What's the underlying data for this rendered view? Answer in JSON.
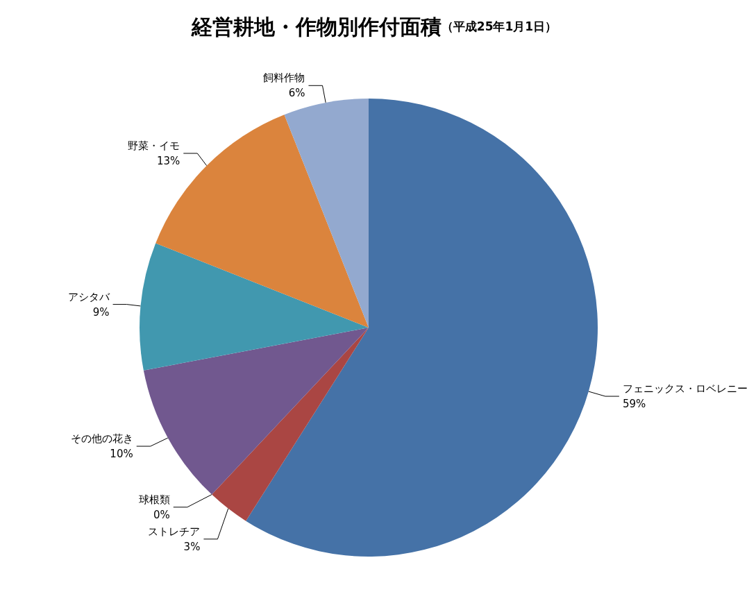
{
  "chart_data": {
    "type": "pie",
    "title": "経営耕地・作物別作付面積",
    "subtitle": "（平成25年1月1日）",
    "categories": [
      "フェニックス・ロベレニー",
      "ストレチア",
      "球根類",
      "その他の花き",
      "アシタバ",
      "野菜・イモ",
      "飼料作物"
    ],
    "values": [
      59,
      3,
      0,
      10,
      9,
      13,
      6
    ],
    "value_labels": [
      "59%",
      "3%",
      "0%",
      "10%",
      "9%",
      "13%",
      "6%"
    ],
    "colors": [
      "#4572a7",
      "#aa4643",
      "#89a54e",
      "#71588f",
      "#4198af",
      "#db843d",
      "#93a9cf"
    ]
  }
}
